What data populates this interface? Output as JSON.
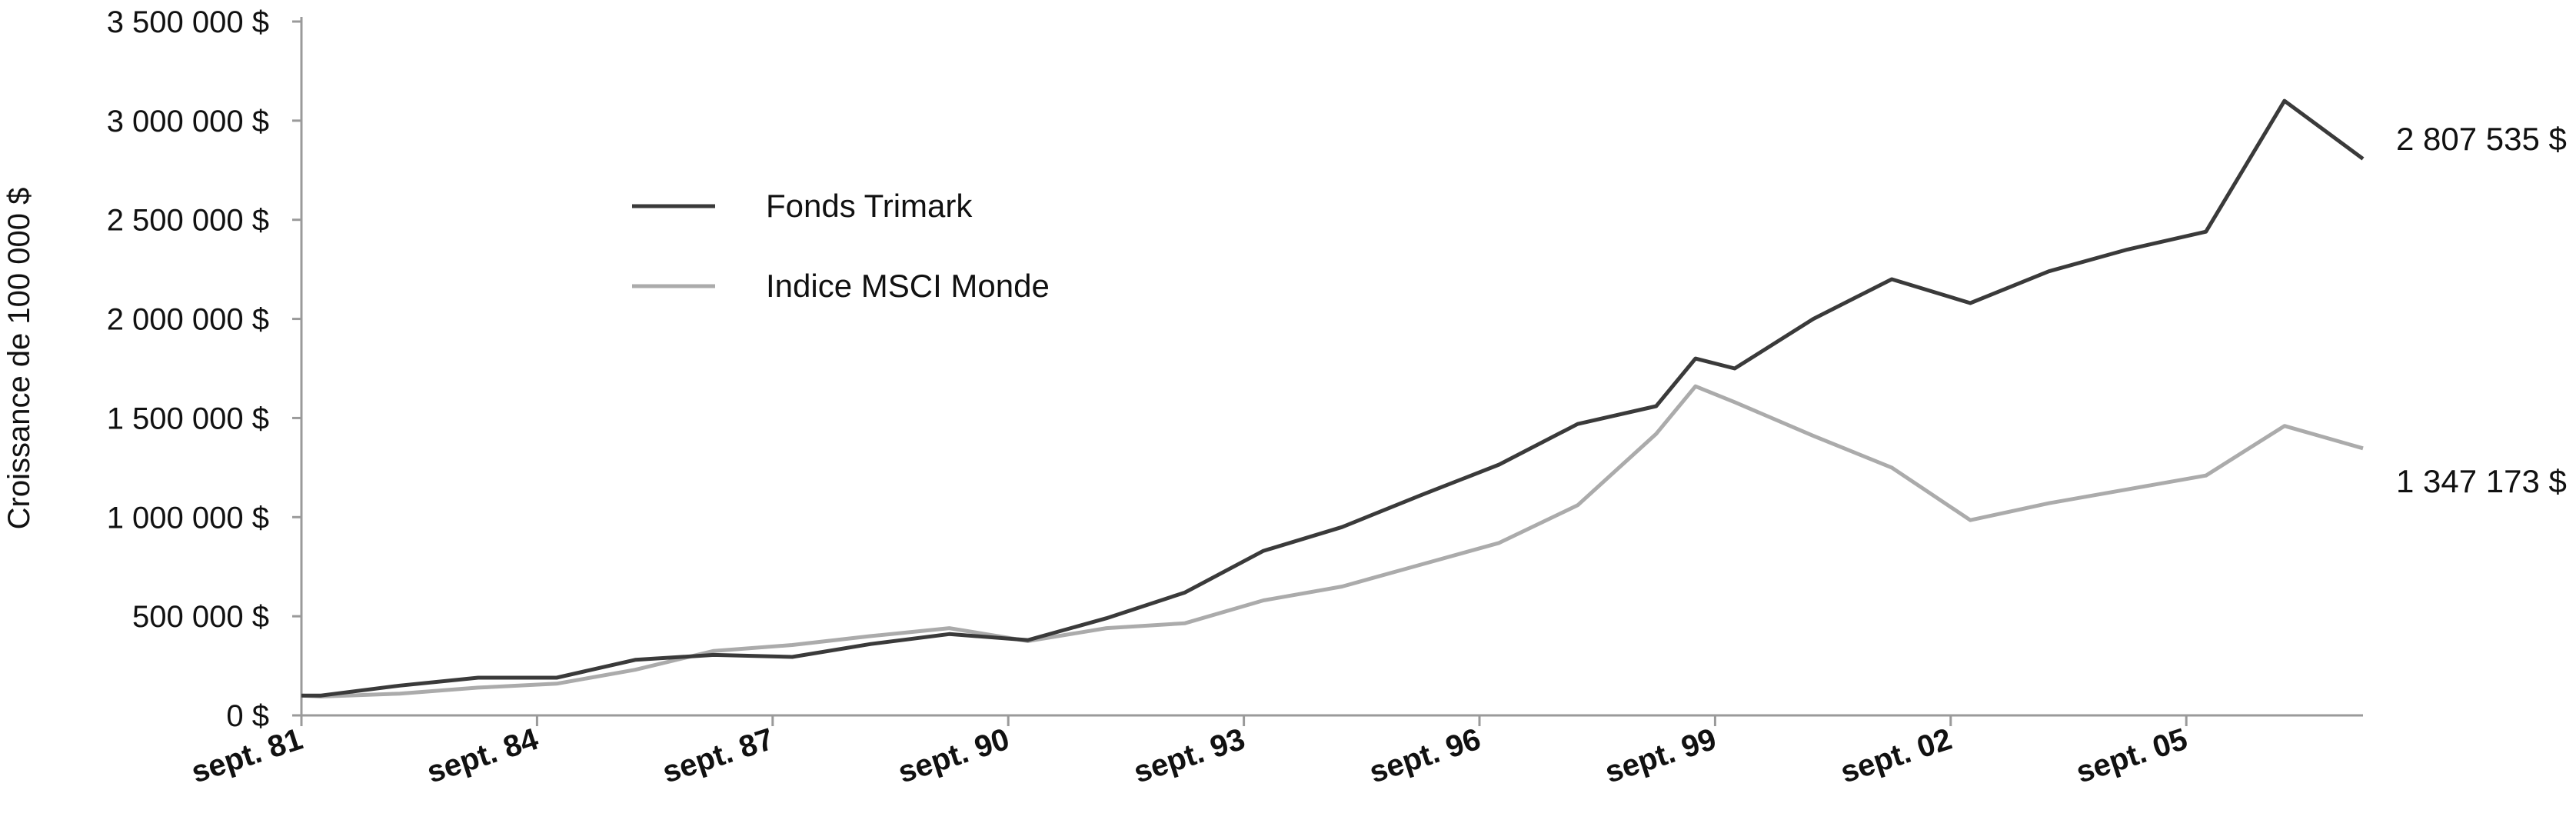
{
  "chart_data": {
    "type": "line",
    "title": "",
    "xlabel": "",
    "ylabel": "Croissance de 100 000 $",
    "ylim": [
      0,
      3500000
    ],
    "y_ticks": [
      0,
      500000,
      1000000,
      1500000,
      2000000,
      2500000,
      3000000,
      3500000
    ],
    "y_tick_labels": [
      "0 $",
      "500 000 $",
      "1 000 000 $",
      "1 500 000 $",
      "2 000 000 $",
      "2 500 000 $",
      "3 000 000 $",
      "3 500 000 $"
    ],
    "xlim": [
      1981.75,
      2008.0
    ],
    "x_ticks": [
      1981.75,
      1984.75,
      1987.75,
      1990.75,
      1993.75,
      1996.75,
      1999.75,
      2002.75,
      2005.75
    ],
    "x_tick_labels": [
      "sept. 81",
      "sept. 84",
      "sept. 87",
      "sept. 90",
      "sept. 93",
      "sept. 96",
      "sept. 99",
      "sept. 02",
      "sept. 05"
    ],
    "grid": false,
    "legend_position": "top-left",
    "series": [
      {
        "name": "Fonds Trimark",
        "color": "#3a3a3a",
        "end_label": "2 807 535 $",
        "x": [
          1981.75,
          1982.0,
          1983.0,
          1984.0,
          1985.0,
          1986.0,
          1987.0,
          1988.0,
          1989.0,
          1990.0,
          1991.0,
          1992.0,
          1993.0,
          1994.0,
          1995.0,
          1996.0,
          1997.0,
          1998.0,
          1999.0,
          1999.5,
          2000.0,
          2001.0,
          2002.0,
          2003.0,
          2004.0,
          2005.0,
          2006.0,
          2007.0,
          2008.0
        ],
        "y": [
          100000,
          100000,
          150000,
          190000,
          190000,
          280000,
          305000,
          295000,
          360000,
          410000,
          380000,
          490000,
          620000,
          830000,
          950000,
          1110000,
          1265000,
          1470000,
          1560000,
          1800000,
          1750000,
          2000000,
          2200000,
          2080000,
          2240000,
          2350000,
          2440000,
          3100000,
          2807535
        ]
      },
      {
        "name": "Indice MSCI Monde",
        "color": "#ababab",
        "end_label": "1 347 173 $",
        "x": [
          1981.75,
          1982.0,
          1983.0,
          1984.0,
          1985.0,
          1986.0,
          1987.0,
          1988.0,
          1989.0,
          1990.0,
          1991.0,
          1992.0,
          1993.0,
          1994.0,
          1995.0,
          1996.0,
          1997.0,
          1998.0,
          1999.0,
          1999.5,
          2000.0,
          2001.0,
          2002.0,
          2003.0,
          2004.0,
          2005.0,
          2006.0,
          2007.0,
          2008.0
        ],
        "y": [
          100000,
          95000,
          110000,
          140000,
          160000,
          230000,
          325000,
          355000,
          400000,
          440000,
          375000,
          440000,
          465000,
          580000,
          650000,
          760000,
          870000,
          1060000,
          1420000,
          1660000,
          1580000,
          1410000,
          1250000,
          985000,
          1070000,
          1140000,
          1210000,
          1460000,
          1347173
        ]
      }
    ]
  }
}
